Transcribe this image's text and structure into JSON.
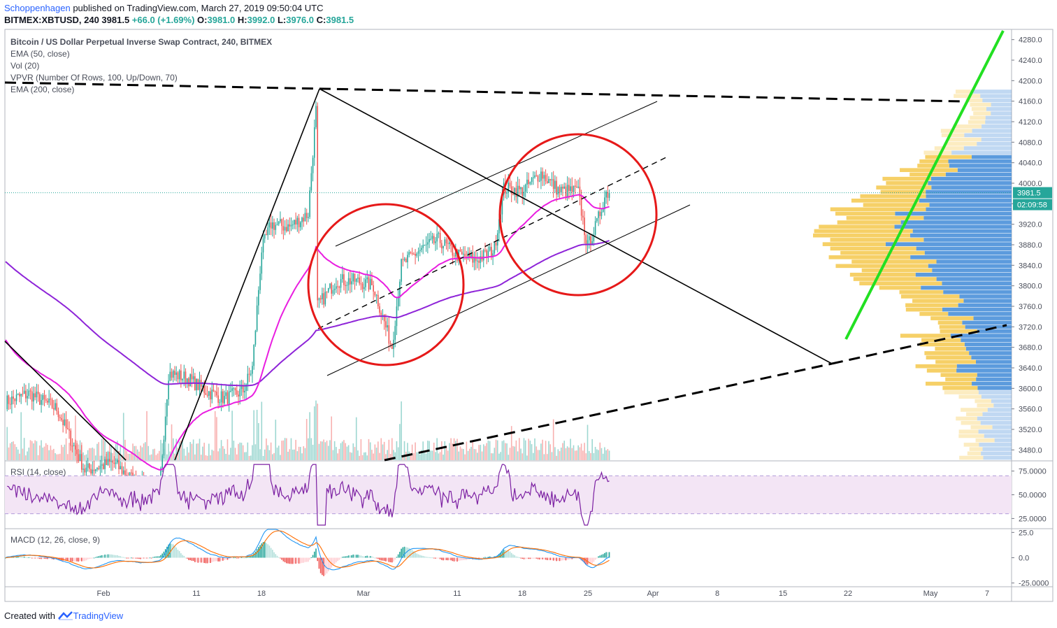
{
  "header": {
    "author": "Schoppenhagen",
    "published_text": " published on TradingView.com, March 27, 2019 09:50:04 UTC",
    "symbol_line_prefix": "BITMEX:XBTUSD, 240  3981.5  ",
    "change": "+66.0 (+1.69%)",
    "o_label": " O:",
    "o_val": "3981.0",
    "h_label": " H:",
    "h_val": "3992.0",
    "l_label": " L:",
    "l_val": "3976.0",
    "c_label": " C:",
    "c_val": "3981.5"
  },
  "legend": {
    "title": "Bitcoin / US Dollar Perpetual Inverse Swap Contract, 240, BITMEX",
    "ema50": "EMA (50, close)",
    "vol": "Vol (20)",
    "vpvr": "VPVR (Number Of Rows, 100, Up/Down, 70)",
    "ema200": "EMA (200, close)",
    "rsi": "RSI (14, close)",
    "macd": "MACD (12, 26, close, 9)"
  },
  "footer": {
    "created_with": "Created with",
    "brand": "TradingView"
  },
  "colors": {
    "up": "#26a69a",
    "down": "#ef5350",
    "ema50": "#e91ee0",
    "ema200": "#8e24d8",
    "rsi_line": "#7b1fa2",
    "rsi_band": "#f3e5f5",
    "macd": "#2196f3",
    "signal": "#ff6d00",
    "circle": "#e61919",
    "green_line": "#22e022",
    "vp_up": "#4a90d9",
    "vp_down": "#f5c84c"
  },
  "chart_data": {
    "type": "candlestick",
    "symbol": "BITMEX:XBTUSD",
    "interval": "240",
    "last_price": "3981.5",
    "countdown": "02:09:58",
    "price_axis": {
      "ticks": [
        "4280.0",
        "4240.0",
        "4200.0",
        "4160.0",
        "4120.0",
        "4080.0",
        "4040.0",
        "4000.0",
        "3960.0",
        "3920.0",
        "3880.0",
        "3840.0",
        "3800.0",
        "3760.0",
        "3720.0",
        "3680.0",
        "3640.0",
        "3600.0",
        "3560.0",
        "3520.0",
        "3480.0"
      ],
      "range": [
        3460,
        4300
      ]
    },
    "time_axis": {
      "ticks": [
        "Feb",
        "11",
        "18",
        "Mar",
        "11",
        "18",
        "25",
        "Apr",
        "8",
        "15",
        "22",
        "May",
        "7"
      ]
    },
    "rsi": {
      "ticks": [
        "75.0000",
        "50.0000",
        "25.0000"
      ],
      "band": [
        30,
        70
      ],
      "range": [
        15,
        85
      ]
    },
    "macd": {
      "ticks": [
        "25.0",
        "0.0",
        "-25.0000"
      ],
      "range": [
        -28,
        28
      ]
    },
    "ohlc_path": [
      {
        "date": "2019-01-21",
        "close": 3570
      },
      {
        "date": "2019-01-24",
        "close": 3590
      },
      {
        "date": "2019-01-27",
        "close": 3560
      },
      {
        "date": "2019-01-30",
        "close": 3440
      },
      {
        "date": "2019-02-02",
        "close": 3455
      },
      {
        "date": "2019-02-05",
        "close": 3410
      },
      {
        "date": "2019-02-07",
        "close": 3400
      },
      {
        "date": "2019-02-08",
        "close": 3630
      },
      {
        "date": "2019-02-10",
        "close": 3620
      },
      {
        "date": "2019-02-12",
        "close": 3595
      },
      {
        "date": "2019-02-14",
        "close": 3580
      },
      {
        "date": "2019-02-16",
        "close": 3595
      },
      {
        "date": "2019-02-17",
        "close": 3640
      },
      {
        "date": "2019-02-18",
        "close": 3870
      },
      {
        "date": "2019-02-19",
        "close": 3920
      },
      {
        "date": "2019-02-21",
        "close": 3915
      },
      {
        "date": "2019-02-23",
        "close": 3940
      },
      {
        "date": "2019-02-24",
        "close": 4180
      },
      {
        "date": "2019-02-24",
        "close": 3760
      },
      {
        "date": "2019-02-26",
        "close": 3810
      },
      {
        "date": "2019-02-28",
        "close": 3810
      },
      {
        "date": "2019-03-02",
        "close": 3800
      },
      {
        "date": "2019-03-04",
        "close": 3680
      },
      {
        "date": "2019-03-05",
        "close": 3840
      },
      {
        "date": "2019-03-07",
        "close": 3870
      },
      {
        "date": "2019-03-09",
        "close": 3890
      },
      {
        "date": "2019-03-11",
        "close": 3860
      },
      {
        "date": "2019-03-13",
        "close": 3850
      },
      {
        "date": "2019-03-15",
        "close": 3870
      },
      {
        "date": "2019-03-16",
        "close": 3990
      },
      {
        "date": "2019-03-18",
        "close": 3985
      },
      {
        "date": "2019-03-20",
        "close": 4020
      },
      {
        "date": "2019-03-22",
        "close": 3985
      },
      {
        "date": "2019-03-24",
        "close": 3985
      },
      {
        "date": "2019-03-25",
        "close": 3875
      },
      {
        "date": "2019-03-26",
        "close": 3920
      },
      {
        "date": "2019-03-27",
        "close": 3981.5
      }
    ]
  }
}
